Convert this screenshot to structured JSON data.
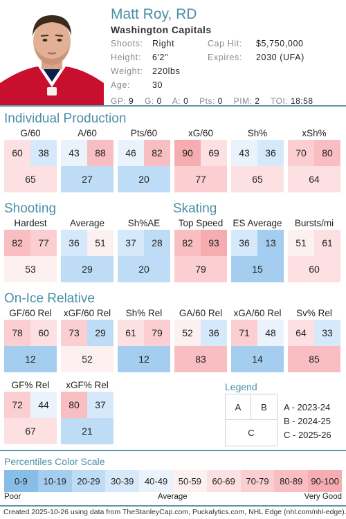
{
  "player": {
    "name": "Matt Roy, RD",
    "team": "Washington Capitals",
    "shoots_label": "Shoots:",
    "shoots": "Right",
    "height_label": "Height:",
    "height": "6'2\"",
    "weight_label": "Weight:",
    "weight": "220lbs",
    "age_label": "Age:",
    "age": "30",
    "cap_hit_label": "Cap Hit:",
    "cap_hit": "$5,750,000",
    "expires_label": "Expires:",
    "expires": "2030 (UFA)"
  },
  "season_stats": {
    "gp_label": "GP:",
    "gp": "9",
    "g_label": "G:",
    "g": "0",
    "a_label": "A:",
    "a": "0",
    "pts_label": "Pts:",
    "pts": "0",
    "pim_label": "PIM:",
    "pim": "2",
    "toi_label": "TOI:",
    "toi": "18:58"
  },
  "sections": {
    "individual": "Individual Production",
    "shooting": "Shooting",
    "skating": "Skating",
    "onice": "On-Ice Relative"
  },
  "metrics": {
    "g60": {
      "label": "G/60",
      "a": "60",
      "b": "38",
      "c": "65"
    },
    "a60": {
      "label": "A/60",
      "a": "43",
      "b": "88",
      "c": "27"
    },
    "pts60": {
      "label": "Pts/60",
      "a": "46",
      "b": "82",
      "c": "20"
    },
    "xg60": {
      "label": "xG/60",
      "a": "90",
      "b": "69",
      "c": "77"
    },
    "sh": {
      "label": "Sh%",
      "a": "43",
      "b": "36",
      "c": "65"
    },
    "xsh": {
      "label": "xSh%",
      "a": "70",
      "b": "80",
      "c": "64"
    },
    "hardest": {
      "label": "Hardest",
      "a": "82",
      "b": "77",
      "c": "53"
    },
    "average": {
      "label": "Average",
      "a": "36",
      "b": "51",
      "c": "29"
    },
    "shae": {
      "label": "Sh%AE",
      "a": "37",
      "b": "28",
      "c": "20"
    },
    "topspeed": {
      "label": "Top Speed",
      "a": "82",
      "b": "93",
      "c": "79"
    },
    "esavg": {
      "label": "ES Average",
      "a": "36",
      "b": "13",
      "c": "15"
    },
    "bursts": {
      "label": "Bursts/mi",
      "a": "51",
      "b": "61",
      "c": "60"
    },
    "gf60rel": {
      "label": "GF/60 Rel",
      "a": "78",
      "b": "60",
      "c": "12"
    },
    "xgf60rel": {
      "label": "xGF/60 Rel",
      "a": "73",
      "b": "29",
      "c": "52"
    },
    "shrel": {
      "label": "Sh% Rel",
      "a": "61",
      "b": "79",
      "c": "12"
    },
    "ga60rel": {
      "label": "GA/60 Rel",
      "a": "52",
      "b": "36",
      "c": "83"
    },
    "xga60rel": {
      "label": "xGA/60 Rel",
      "a": "71",
      "b": "48",
      "c": "14"
    },
    "svrel": {
      "label": "Sv% Rel",
      "a": "64",
      "b": "33",
      "c": "85"
    },
    "gfpctrel": {
      "label": "GF% Rel",
      "a": "72",
      "b": "44",
      "c": "67"
    },
    "xgfpctrel": {
      "label": "xGF% Rel",
      "a": "80",
      "b": "37",
      "c": "21"
    }
  },
  "legend": {
    "title": "Legend",
    "a": "A",
    "b": "B",
    "c": "C",
    "a_desc": "A - 2023-24",
    "b_desc": "B - 2024-25",
    "c_desc": "C - 2025-26"
  },
  "scale": {
    "title": "Percentiles Color Scale",
    "segments": [
      "0-9",
      "10-19",
      "20-29",
      "30-39",
      "40-49",
      "50-59",
      "60-69",
      "70-79",
      "80-89",
      "90-100"
    ],
    "colors": [
      "#88bde8",
      "#a4cdf0",
      "#bfdcf6",
      "#d6e9fa",
      "#eaf3fc",
      "#fdf0f0",
      "#fde0e1",
      "#fbcfd1",
      "#f8bec1",
      "#f5adb1"
    ],
    "poor": "Poor",
    "average": "Average",
    "very_good": "Very Good"
  },
  "footer": "Created 2025-10-26 using data from TheStanleyCap.com, Puckalytics.com, NHL Edge (nhl.com/nhl-edge)."
}
